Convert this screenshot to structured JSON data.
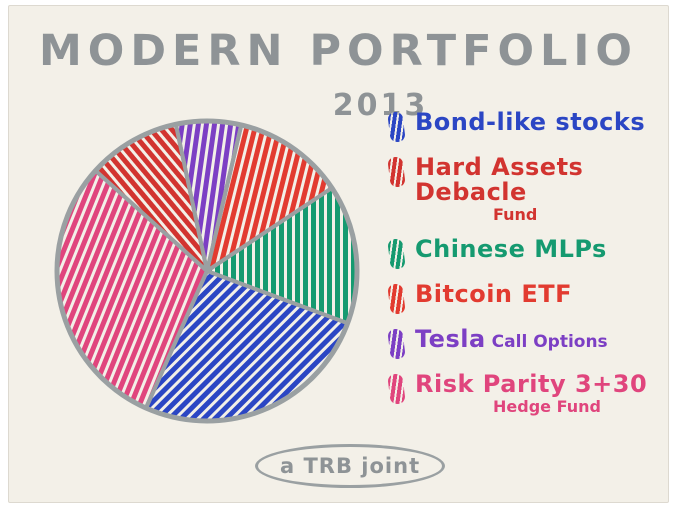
{
  "page": {
    "title": "MODERN PORTFOLIO",
    "subtitle": "2013",
    "credit": "a TRB joint"
  },
  "colors": {
    "ink_gray": "#8e9396",
    "outline_gray": "#9aa0a2",
    "paper": "#f3f0e8"
  },
  "legend": [
    {
      "label": "Bond-like stocks",
      "suffix": "",
      "sublabel": "",
      "color": "#2b46c4"
    },
    {
      "label": "Hard Assets Debacle",
      "suffix": "",
      "sublabel": "Fund",
      "color": "#d23430"
    },
    {
      "label": "Chinese MLPs",
      "suffix": "",
      "sublabel": "",
      "color": "#159a70"
    },
    {
      "label": "Bitcoin ETF",
      "suffix": "",
      "sublabel": "",
      "color": "#e23b30"
    },
    {
      "label": "Tesla",
      "suffix": "Call Options",
      "sublabel": "",
      "color": "#7c3fc4"
    },
    {
      "label": "Risk Parity 3+30",
      "suffix": "",
      "sublabel": "Hedge Fund",
      "color": "#e0457d"
    }
  ],
  "chart_data": {
    "type": "pie",
    "title": "MODERN PORTFOLIO",
    "subtitle": "2013",
    "style": "hand-drawn marker scribble",
    "labels": [
      "Tesla Call Options",
      "Bitcoin ETF",
      "Chinese MLPs",
      "Bond-like stocks",
      "Risk Parity 3+30 Hedge Fund",
      "Hard Assets Debacle Fund"
    ],
    "values": [
      7,
      12,
      15,
      26,
      30,
      10
    ],
    "colors": [
      "#7c3fc4",
      "#e23b30",
      "#159a70",
      "#2b46c4",
      "#e0457d",
      "#d23430"
    ],
    "hatch_rotations": [
      8,
      14,
      0,
      45,
      22,
      -40
    ],
    "start_angle_deg": -12,
    "direction": "clockwise",
    "legend_position": "right",
    "legend_order": [
      "Bond-like stocks",
      "Hard Assets Debacle Fund",
      "Chinese MLPs",
      "Bitcoin ETF",
      "Tesla Call Options",
      "Risk Parity 3+30 Hedge Fund"
    ]
  }
}
